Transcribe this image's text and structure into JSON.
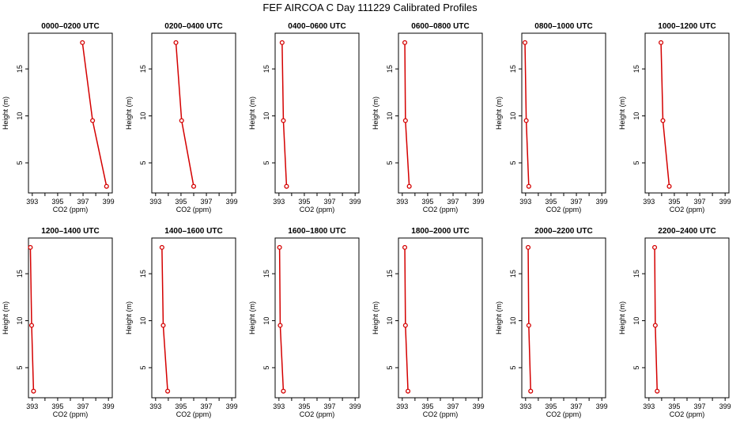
{
  "title": "FEF AIRCOA C  Day 111229  Calibrated Profiles",
  "chart_data": {
    "type": "line",
    "title": "FEF AIRCOA C  Day 111229  Calibrated Profiles",
    "xlabel": "CO2 (ppm)",
    "ylabel": "Height (m)",
    "xlim": [
      392.7,
      399.3
    ],
    "ylim": [
      1.8,
      18.8
    ],
    "xticks": [
      393,
      395,
      397,
      399
    ],
    "xticks_minor": [
      394,
      396,
      398
    ],
    "yticks": [
      5,
      10,
      15
    ],
    "line_color": "#d40000",
    "grid": false,
    "panels": [
      {
        "title": "0000–0200 UTC",
        "points": [
          {
            "x": 396.95,
            "y": 17.8
          },
          {
            "x": 397.75,
            "y": 9.5
          },
          {
            "x": 398.85,
            "y": 2.5
          }
        ]
      },
      {
        "title": "0200–0400 UTC",
        "points": [
          {
            "x": 394.6,
            "y": 17.8
          },
          {
            "x": 395.05,
            "y": 9.5
          },
          {
            "x": 396.0,
            "y": 2.5
          }
        ]
      },
      {
        "title": "0400–0600 UTC",
        "points": [
          {
            "x": 393.25,
            "y": 17.8
          },
          {
            "x": 393.35,
            "y": 9.5
          },
          {
            "x": 393.6,
            "y": 2.5
          }
        ]
      },
      {
        "title": "0600–0800 UTC",
        "points": [
          {
            "x": 393.2,
            "y": 17.8
          },
          {
            "x": 393.25,
            "y": 9.5
          },
          {
            "x": 393.55,
            "y": 2.5
          }
        ]
      },
      {
        "title": "0800–1000 UTC",
        "points": [
          {
            "x": 392.95,
            "y": 17.8
          },
          {
            "x": 393.05,
            "y": 9.5
          },
          {
            "x": 393.25,
            "y": 2.5
          }
        ]
      },
      {
        "title": "1000–1200 UTC",
        "points": [
          {
            "x": 393.95,
            "y": 17.8
          },
          {
            "x": 394.1,
            "y": 9.5
          },
          {
            "x": 394.6,
            "y": 2.5
          }
        ]
      },
      {
        "title": "1200–1400 UTC",
        "points": [
          {
            "x": 392.85,
            "y": 17.8
          },
          {
            "x": 392.95,
            "y": 9.5
          },
          {
            "x": 393.1,
            "y": 2.5
          }
        ]
      },
      {
        "title": "1400–1600 UTC",
        "points": [
          {
            "x": 393.5,
            "y": 17.8
          },
          {
            "x": 393.6,
            "y": 9.5
          },
          {
            "x": 393.95,
            "y": 2.5
          }
        ]
      },
      {
        "title": "1600–1800 UTC",
        "points": [
          {
            "x": 393.05,
            "y": 17.8
          },
          {
            "x": 393.1,
            "y": 9.5
          },
          {
            "x": 393.35,
            "y": 2.5
          }
        ]
      },
      {
        "title": "1800–2000 UTC",
        "points": [
          {
            "x": 393.2,
            "y": 17.8
          },
          {
            "x": 393.25,
            "y": 9.5
          },
          {
            "x": 393.45,
            "y": 2.5
          }
        ]
      },
      {
        "title": "2000–2200 UTC",
        "points": [
          {
            "x": 393.2,
            "y": 17.8
          },
          {
            "x": 393.25,
            "y": 9.5
          },
          {
            "x": 393.4,
            "y": 2.5
          }
        ]
      },
      {
        "title": "2200–2400 UTC",
        "points": [
          {
            "x": 393.45,
            "y": 17.8
          },
          {
            "x": 393.5,
            "y": 9.5
          },
          {
            "x": 393.65,
            "y": 2.5
          }
        ]
      }
    ]
  }
}
